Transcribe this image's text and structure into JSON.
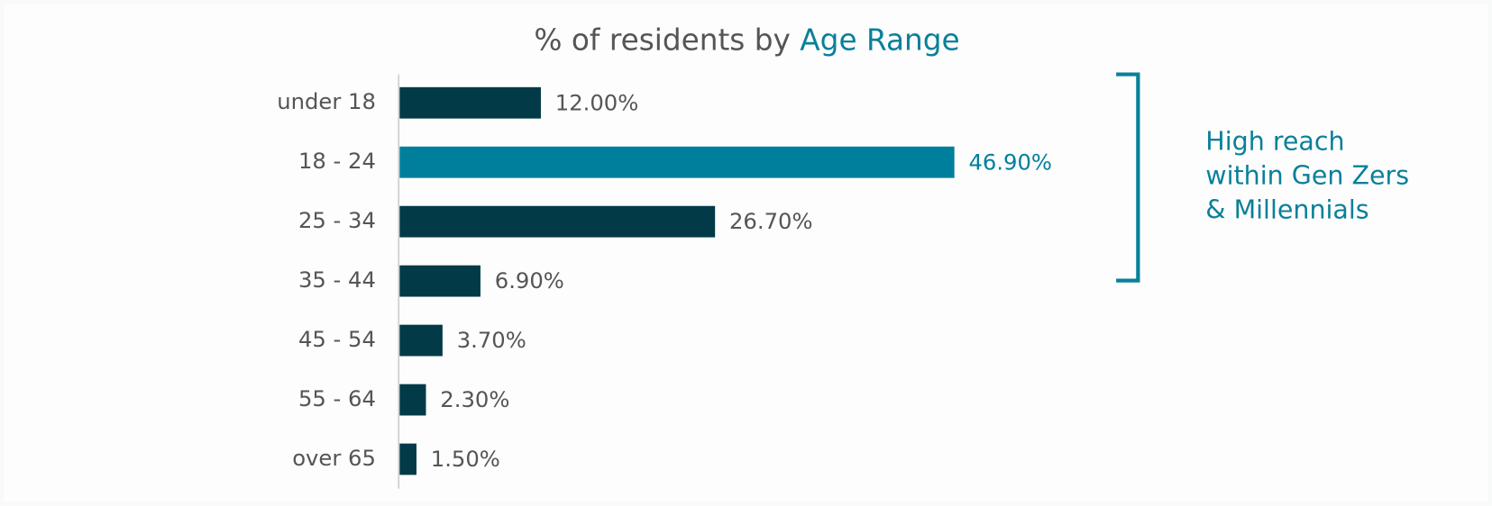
{
  "chart_data": {
    "type": "hbar",
    "title": "% of residents by",
    "title_highlight": "Age Range",
    "categories": [
      "under 18",
      "18 - 24",
      "25 - 34",
      "35 - 44",
      "45 - 54",
      "55 - 64",
      "over 65"
    ],
    "values": [
      12.0,
      46.9,
      26.7,
      6.9,
      3.7,
      2.3,
      1.5
    ],
    "value_labels": [
      "12.00%",
      "46.90%",
      "26.70%",
      "6.90%",
      "3.70%",
      "2.30%",
      "1.50%"
    ],
    "color": "#023a48",
    "colors": [
      "#023a48",
      "#007f9c",
      "#023a48",
      "#023a48",
      "#023a48",
      "#023a48",
      "#023a48"
    ],
    "annotation": [
      "High reach",
      "within Gen Zers",
      "& Millennials"
    ],
    "annotation_color": "#0a8099"
  }
}
